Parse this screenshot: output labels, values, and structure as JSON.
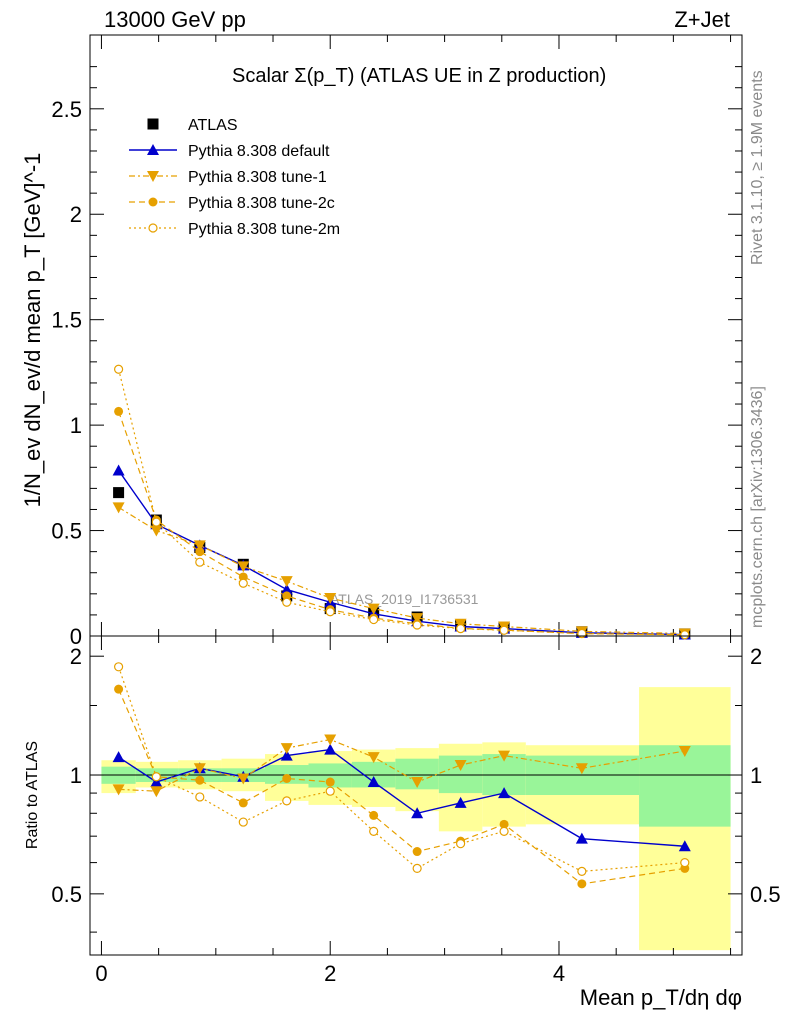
{
  "header": {
    "left": "13000 GeV pp",
    "right": "Z+Jet"
  },
  "side_labels": {
    "rivet": "Rivet 3.1.10, ≥ 1.9M events",
    "mcplots": "mcplots.cern.ch [arXiv:1306.3436]"
  },
  "colors": {
    "atlas": "#000000",
    "default": "#0000cc",
    "tunes": "#e6a000",
    "band_green": "#99f599",
    "band_yellow": "#ffff99"
  },
  "chart_data": [
    {
      "type": "line",
      "title": "Scalar Σ(p_T) (ATLAS UE in Z production)",
      "xlabel": "Mean p_T/dη dφ",
      "ylabel": "1/N_ev dN_ev/d mean p_T [GeV]^-1",
      "watermark": "ATLAS_2019_I1736531",
      "xlim": [
        -0.1,
        5.6
      ],
      "ylim": [
        0,
        2.85
      ],
      "yticks": [
        0,
        0.5,
        1,
        1.5,
        2,
        2.5
      ],
      "ytick_labels": [
        "0",
        "0.5",
        "1",
        "1.5",
        "2",
        "2.5"
      ],
      "x": [
        0.15,
        0.48,
        0.86,
        1.24,
        1.62,
        2.0,
        2.38,
        2.76,
        3.14,
        3.52,
        4.2,
        5.1
      ],
      "legend": [
        "ATLAS",
        "Pythia 8.308 default",
        "Pythia 8.308 tune-1",
        "Pythia 8.308 tune-2c",
        "Pythia 8.308 tune-2m"
      ],
      "legend_position": "top-left",
      "series": [
        {
          "name": "ATLAS",
          "marker": "square",
          "values": [
            0.68,
            0.55,
            0.42,
            0.34,
            0.19,
            0.13,
            0.11,
            0.09,
            0.05,
            0.04,
            0.02,
            0.01
          ]
        },
        {
          "name": "Pythia 8.308 default",
          "marker": "triangle-up",
          "values": [
            0.785,
            0.53,
            0.43,
            0.335,
            0.22,
            0.16,
            0.105,
            0.07,
            0.045,
            0.035,
            0.015,
            0.007
          ]
        },
        {
          "name": "Pythia 8.308 tune-1",
          "marker": "triangle-down",
          "values": [
            0.61,
            0.5,
            0.43,
            0.33,
            0.26,
            0.18,
            0.13,
            0.085,
            0.058,
            0.045,
            0.022,
            0.012
          ]
        },
        {
          "name": "Pythia 8.308 tune-2c",
          "marker": "circle",
          "values": [
            1.065,
            0.55,
            0.4,
            0.28,
            0.19,
            0.125,
            0.085,
            0.058,
            0.036,
            0.028,
            0.011,
            0.006
          ]
        },
        {
          "name": "Pythia 8.308 tune-2m",
          "marker": "circle-open",
          "values": [
            1.265,
            0.54,
            0.35,
            0.25,
            0.16,
            0.115,
            0.078,
            0.052,
            0.035,
            0.027,
            0.012,
            0.006
          ]
        }
      ]
    },
    {
      "type": "line",
      "ylabel": "Ratio to ATLAS",
      "xlabel": "Mean p_T/dη dφ",
      "xlim": [
        -0.1,
        5.6
      ],
      "ylim": [
        0.35,
        2.25
      ],
      "yticks": [
        0.5,
        1,
        2
      ],
      "ytick_labels": [
        "0.5",
        "1",
        "2"
      ],
      "xticks": [
        0,
        2,
        4
      ],
      "xtick_labels": [
        "0",
        "2",
        "4"
      ],
      "bins": [
        {
          "lo": 0.0,
          "hi": 0.3,
          "green": [
            0.95,
            1.05
          ],
          "yellow": [
            0.9,
            1.09
          ]
        },
        {
          "lo": 0.3,
          "hi": 0.67,
          "green": [
            0.96,
            1.04
          ],
          "yellow": [
            0.93,
            1.08
          ]
        },
        {
          "lo": 0.67,
          "hi": 1.05,
          "green": [
            0.96,
            1.04
          ],
          "yellow": [
            0.92,
            1.09
          ]
        },
        {
          "lo": 1.05,
          "hi": 1.43,
          "green": [
            0.96,
            1.04
          ],
          "yellow": [
            0.91,
            1.1
          ]
        },
        {
          "lo": 1.43,
          "hi": 1.81,
          "green": [
            0.95,
            1.06
          ],
          "yellow": [
            0.86,
            1.13
          ]
        },
        {
          "lo": 1.81,
          "hi": 2.19,
          "green": [
            0.93,
            1.07
          ],
          "yellow": [
            0.84,
            1.15
          ]
        },
        {
          "lo": 2.19,
          "hi": 2.57,
          "green": [
            0.93,
            1.08
          ],
          "yellow": [
            0.83,
            1.16
          ]
        },
        {
          "lo": 2.57,
          "hi": 2.95,
          "green": [
            0.92,
            1.1
          ],
          "yellow": [
            0.81,
            1.17
          ]
        },
        {
          "lo": 2.95,
          "hi": 3.33,
          "green": [
            0.9,
            1.12
          ],
          "yellow": [
            0.72,
            1.2
          ]
        },
        {
          "lo": 3.33,
          "hi": 3.71,
          "green": [
            0.89,
            1.13
          ],
          "yellow": [
            0.74,
            1.21
          ]
        },
        {
          "lo": 3.71,
          "hi": 4.7,
          "green": [
            0.89,
            1.12
          ],
          "yellow": [
            0.75,
            1.19
          ]
        },
        {
          "lo": 4.7,
          "hi": 5.5,
          "green": [
            0.74,
            1.19
          ],
          "yellow": [
            0.36,
            1.67
          ]
        }
      ],
      "series": [
        {
          "name": "Pythia 8.308 default",
          "values": [
            1.11,
            0.96,
            1.04,
            0.99,
            1.12,
            1.16,
            0.96,
            0.8,
            0.85,
            0.9,
            0.69,
            0.66
          ]
        },
        {
          "name": "Pythia 8.308 tune-1",
          "values": [
            0.92,
            0.91,
            1.04,
            0.98,
            1.17,
            1.23,
            1.11,
            0.96,
            1.06,
            1.12,
            1.04,
            1.15
          ]
        },
        {
          "name": "Pythia 8.308 tune-2c",
          "values": [
            1.65,
            0.99,
            0.97,
            0.85,
            0.98,
            0.96,
            0.79,
            0.64,
            0.68,
            0.75,
            0.53,
            0.58
          ]
        },
        {
          "name": "Pythia 8.308 tune-2m",
          "values": [
            1.88,
            0.99,
            0.88,
            0.76,
            0.86,
            0.91,
            0.72,
            0.58,
            0.67,
            0.72,
            0.57,
            0.6
          ]
        }
      ]
    }
  ]
}
